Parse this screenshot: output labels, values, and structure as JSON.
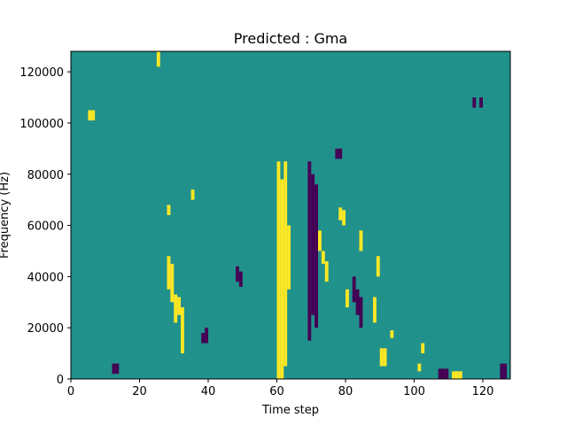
{
  "chart_data": {
    "type": "heatmap",
    "title": "Predicted : Gma",
    "xlabel": "Time step",
    "ylabel": "Frequency (Hz)",
    "xlim": [
      0,
      128
    ],
    "ylim": [
      0,
      128000
    ],
    "xticks": [
      0,
      20,
      40,
      60,
      80,
      100,
      120
    ],
    "yticks": [
      0,
      20000,
      40000,
      60000,
      80000,
      100000,
      120000
    ],
    "grid": false,
    "colormap": {
      "background_value": 0,
      "colors": {
        "high": "#fde725",
        "mid": "#21918c",
        "low": "#440154"
      }
    },
    "y_bin_hz": 1000,
    "high_segments": [
      {
        "x": 60,
        "y0": 0,
        "y1": 85000
      },
      {
        "x": 61,
        "y0": 0,
        "y1": 78000
      },
      {
        "x": 62,
        "y0": 5000,
        "y1": 85000
      },
      {
        "x": 63,
        "y0": 35000,
        "y1": 60000
      },
      {
        "x": 28,
        "y0": 35000,
        "y1": 48000
      },
      {
        "x": 29,
        "y0": 30000,
        "y1": 45000
      },
      {
        "x": 30,
        "y0": 22000,
        "y1": 33000
      },
      {
        "x": 31,
        "y0": 25000,
        "y1": 32000
      },
      {
        "x": 32,
        "y0": 10000,
        "y1": 28000
      },
      {
        "x": 72,
        "y0": 50000,
        "y1": 58000
      },
      {
        "x": 73,
        "y0": 45000,
        "y1": 50000
      },
      {
        "x": 74,
        "y0": 38000,
        "y1": 46000
      },
      {
        "x": 80,
        "y0": 28000,
        "y1": 35000
      },
      {
        "x": 84,
        "y0": 50000,
        "y1": 58000
      },
      {
        "x": 88,
        "y0": 22000,
        "y1": 32000
      },
      {
        "x": 89,
        "y0": 40000,
        "y1": 48000
      },
      {
        "x": 101,
        "y0": 3000,
        "y1": 6000
      },
      {
        "x": 102,
        "y0": 10000,
        "y1": 14000
      },
      {
        "x": 111,
        "y0": 0,
        "y1": 3000
      },
      {
        "x": 112,
        "y0": 0,
        "y1": 3000
      },
      {
        "x": 113,
        "y0": 0,
        "y1": 3000
      },
      {
        "x": 25,
        "y0": 122000,
        "y1": 128000
      },
      {
        "x": 28,
        "y0": 64000,
        "y1": 68000
      },
      {
        "x": 35,
        "y0": 70000,
        "y1": 74000
      },
      {
        "x": 6,
        "y0": 101000,
        "y1": 105000
      },
      {
        "x": 5,
        "y0": 101000,
        "y1": 105000
      },
      {
        "x": 78,
        "y0": 62000,
        "y1": 67000
      },
      {
        "x": 79,
        "y0": 60000,
        "y1": 66000
      },
      {
        "x": 90,
        "y0": 5000,
        "y1": 12000
      },
      {
        "x": 91,
        "y0": 5000,
        "y1": 12000
      },
      {
        "x": 93,
        "y0": 16000,
        "y1": 19000
      }
    ],
    "low_segments": [
      {
        "x": 69,
        "y0": 15000,
        "y1": 85000
      },
      {
        "x": 70,
        "y0": 25000,
        "y1": 80000
      },
      {
        "x": 71,
        "y0": 20000,
        "y1": 76000
      },
      {
        "x": 82,
        "y0": 30000,
        "y1": 40000
      },
      {
        "x": 83,
        "y0": 25000,
        "y1": 35000
      },
      {
        "x": 84,
        "y0": 20000,
        "y1": 32000
      },
      {
        "x": 48,
        "y0": 38000,
        "y1": 44000
      },
      {
        "x": 49,
        "y0": 36000,
        "y1": 42000
      },
      {
        "x": 77,
        "y0": 86000,
        "y1": 90000
      },
      {
        "x": 78,
        "y0": 86000,
        "y1": 90000
      },
      {
        "x": 107,
        "y0": 0,
        "y1": 4000
      },
      {
        "x": 108,
        "y0": 0,
        "y1": 4000
      },
      {
        "x": 109,
        "y0": 0,
        "y1": 4000
      },
      {
        "x": 119,
        "y0": 106000,
        "y1": 110000
      },
      {
        "x": 117,
        "y0": 106000,
        "y1": 110000
      },
      {
        "x": 125,
        "y0": 0,
        "y1": 6000
      },
      {
        "x": 126,
        "y0": 0,
        "y1": 6000
      },
      {
        "x": 38,
        "y0": 14000,
        "y1": 18000
      },
      {
        "x": 39,
        "y0": 14000,
        "y1": 20000
      },
      {
        "x": 12,
        "y0": 2000,
        "y1": 6000
      },
      {
        "x": 13,
        "y0": 2000,
        "y1": 6000
      }
    ]
  }
}
